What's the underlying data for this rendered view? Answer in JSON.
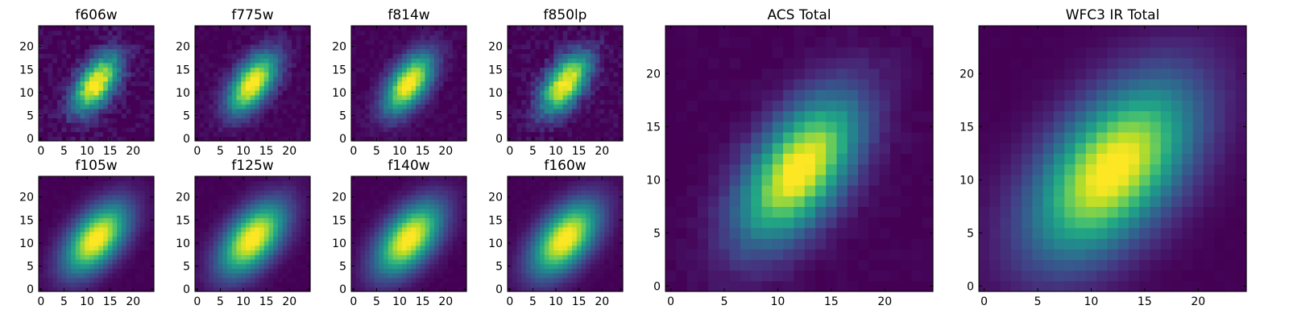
{
  "chart_data": [
    {
      "type": "heatmap",
      "title": "f606w",
      "xlim": [
        0,
        24
      ],
      "ylim": [
        0,
        24
      ],
      "xticks": [
        "0",
        "5",
        "10",
        "15",
        "20"
      ],
      "yticks": [
        "0",
        "5",
        "10",
        "15",
        "20"
      ],
      "colormap": "viridis",
      "peak": [
        12,
        12
      ],
      "sigma_major": 5.0,
      "sigma_minor": 2.6,
      "angle_deg": -55,
      "noise": 0.12
    },
    {
      "type": "heatmap",
      "title": "f775w",
      "xlim": [
        0,
        24
      ],
      "ylim": [
        0,
        24
      ],
      "xticks": [
        "0",
        "5",
        "10",
        "15",
        "20"
      ],
      "yticks": [
        "0",
        "5",
        "10",
        "15",
        "20"
      ],
      "colormap": "viridis",
      "peak": [
        12,
        12
      ],
      "sigma_major": 5.2,
      "sigma_minor": 2.7,
      "angle_deg": -55,
      "noise": 0.07
    },
    {
      "type": "heatmap",
      "title": "f814w",
      "xlim": [
        0,
        24
      ],
      "ylim": [
        0,
        24
      ],
      "xticks": [
        "0",
        "5",
        "10",
        "15",
        "20"
      ],
      "yticks": [
        "0",
        "5",
        "10",
        "15",
        "20"
      ],
      "colormap": "viridis",
      "peak": [
        12,
        12
      ],
      "sigma_major": 5.2,
      "sigma_minor": 2.7,
      "angle_deg": -55,
      "noise": 0.06
    },
    {
      "type": "heatmap",
      "title": "f850lp",
      "xlim": [
        0,
        24
      ],
      "ylim": [
        0,
        24
      ],
      "xticks": [
        "0",
        "5",
        "10",
        "15",
        "20"
      ],
      "yticks": [
        "0",
        "5",
        "10",
        "15",
        "20"
      ],
      "colormap": "viridis",
      "peak": [
        12,
        12
      ],
      "sigma_major": 5.2,
      "sigma_minor": 2.7,
      "angle_deg": -55,
      "noise": 0.11
    },
    {
      "type": "heatmap",
      "title": "f105w",
      "xlim": [
        0,
        24
      ],
      "ylim": [
        0,
        24
      ],
      "xticks": [
        "0",
        "5",
        "10",
        "15",
        "20"
      ],
      "yticks": [
        "0",
        "5",
        "10",
        "15",
        "20"
      ],
      "colormap": "viridis",
      "peak": [
        12,
        11
      ],
      "sigma_major": 6.2,
      "sigma_minor": 3.4,
      "angle_deg": -50,
      "noise": 0.02
    },
    {
      "type": "heatmap",
      "title": "f125w",
      "xlim": [
        0,
        24
      ],
      "ylim": [
        0,
        24
      ],
      "xticks": [
        "0",
        "5",
        "10",
        "15",
        "20"
      ],
      "yticks": [
        "0",
        "5",
        "10",
        "15",
        "20"
      ],
      "colormap": "viridis",
      "peak": [
        12,
        11
      ],
      "sigma_major": 6.4,
      "sigma_minor": 3.5,
      "angle_deg": -50,
      "noise": 0.02
    },
    {
      "type": "heatmap",
      "title": "f140w",
      "xlim": [
        0,
        24
      ],
      "ylim": [
        0,
        24
      ],
      "xticks": [
        "0",
        "5",
        "10",
        "15",
        "20"
      ],
      "yticks": [
        "0",
        "5",
        "10",
        "15",
        "20"
      ],
      "colormap": "viridis",
      "peak": [
        12,
        11
      ],
      "sigma_major": 6.4,
      "sigma_minor": 3.5,
      "angle_deg": -50,
      "noise": 0.02
    },
    {
      "type": "heatmap",
      "title": "f160w",
      "xlim": [
        0,
        24
      ],
      "ylim": [
        0,
        24
      ],
      "xticks": [
        "0",
        "5",
        "10",
        "15",
        "20"
      ],
      "yticks": [
        "0",
        "5",
        "10",
        "15",
        "20"
      ],
      "colormap": "viridis",
      "peak": [
        12,
        11
      ],
      "sigma_major": 6.5,
      "sigma_minor": 3.6,
      "angle_deg": -50,
      "noise": 0.02
    },
    {
      "type": "heatmap",
      "title": "ACS Total",
      "xlim": [
        0,
        24
      ],
      "ylim": [
        0,
        24
      ],
      "xticks": [
        "0",
        "5",
        "10",
        "15",
        "20"
      ],
      "yticks": [
        "0",
        "5",
        "10",
        "15",
        "20"
      ],
      "colormap": "viridis",
      "peak": [
        12,
        11
      ],
      "sigma_major": 5.4,
      "sigma_minor": 2.8,
      "angle_deg": -55,
      "noise": 0.03
    },
    {
      "type": "heatmap",
      "title": "WFC3 IR Total",
      "xlim": [
        0,
        24
      ],
      "ylim": [
        0,
        24
      ],
      "xticks": [
        "0",
        "5",
        "10",
        "15",
        "20"
      ],
      "yticks": [
        "0",
        "5",
        "10",
        "15",
        "20"
      ],
      "colormap": "viridis",
      "peak": [
        12,
        11
      ],
      "sigma_major": 6.6,
      "sigma_minor": 3.7,
      "angle_deg": -50,
      "noise": 0.01
    }
  ]
}
